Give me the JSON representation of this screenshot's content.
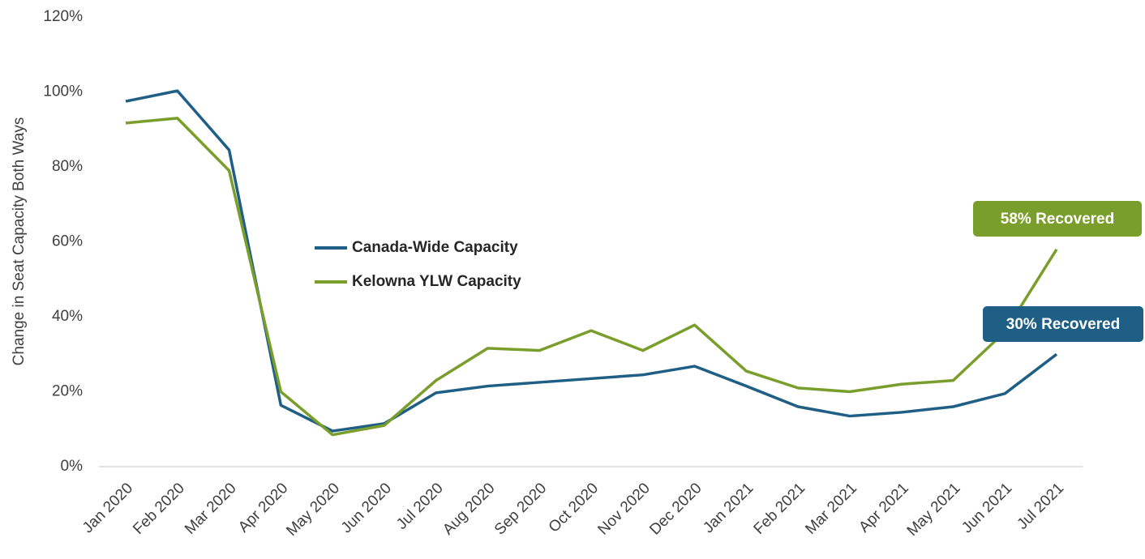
{
  "chart_data": {
    "type": "line",
    "ylabel": "Change in Seat Capacity Both Ways",
    "categories": [
      "Jan 2020",
      "Feb 2020",
      "Mar 2020",
      "Apr 2020",
      "May 2020",
      "Jun 2020",
      "Jul 2020",
      "Aug 2020",
      "Sep 2020",
      "Oct 2020",
      "Nov 2020",
      "Dec 2020",
      "Jan 2021",
      "Feb 2021",
      "Mar 2021",
      "Apr 2021",
      "May 2021",
      "Jun 2021",
      "Jul 2021"
    ],
    "series": [
      {
        "name": "Canada-Wide Capacity",
        "color": "#1f5f86",
        "values": [
          97.5,
          100.3,
          84.5,
          16.4,
          9.5,
          11.5,
          19.7,
          21.5,
          22.5,
          23.5,
          24.5,
          26.8,
          21.5,
          16,
          13.5,
          14.5,
          16,
          19.5,
          30
        ]
      },
      {
        "name": "Kelowna YLW Capacity",
        "color": "#7a9e2c",
        "values": [
          91.7,
          93,
          79,
          20,
          8.5,
          11,
          23,
          31.6,
          31,
          36.3,
          31,
          37.8,
          25.5,
          21,
          20,
          22,
          23,
          36,
          58
        ]
      }
    ],
    "annotations": [
      {
        "text": "58% Recovered",
        "color": "#7a9e2c"
      },
      {
        "text": "30% Recovered",
        "color": "#1f5f86"
      }
    ],
    "ylim": [
      0,
      120
    ],
    "yticks": [
      {
        "value": 0,
        "label": "0%"
      },
      {
        "value": 20,
        "label": "20%"
      },
      {
        "value": 40,
        "label": "40%"
      },
      {
        "value": 60,
        "label": "60%"
      },
      {
        "value": 80,
        "label": "80%"
      },
      {
        "value": 100,
        "label": "100%"
      },
      {
        "value": 120,
        "label": "120%"
      }
    ],
    "grid": false
  }
}
